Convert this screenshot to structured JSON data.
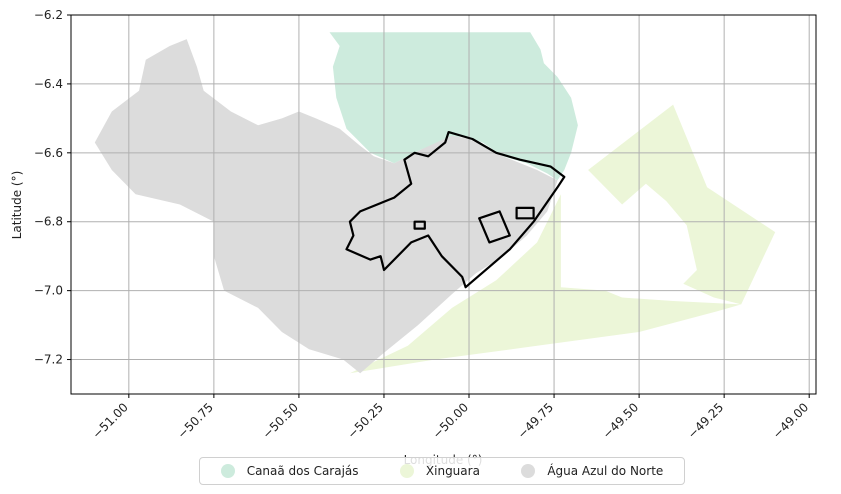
{
  "chart_data": {
    "type": "map",
    "xlabel": "Longitude (°)",
    "ylabel": "Latitude (°)",
    "xlim": [
      -51.17,
      -48.98
    ],
    "ylim": [
      -7.3,
      -6.2
    ],
    "xticks": [
      -51.0,
      -50.75,
      -50.5,
      -50.25,
      -50.0,
      -49.75,
      -49.5,
      -49.25,
      -49.0
    ],
    "xtick_labels": [
      "−51.00",
      "−50.75",
      "−50.50",
      "−50.25",
      "−50.00",
      "−49.75",
      "−49.50",
      "−49.25",
      "−49.00"
    ],
    "yticks": [
      -6.2,
      -6.4,
      -6.6,
      -6.8,
      -7.0,
      -7.2
    ],
    "ytick_labels": [
      "−6.2",
      "−6.4",
      "−6.6",
      "−6.8",
      "−7.0",
      "−7.2"
    ],
    "grid": true,
    "legend_position": "bottom-center",
    "regions": [
      {
        "name": "Canaã dos Carajás",
        "color": "#cdebdd",
        "polygon": [
          [
            -50.41,
            -6.25
          ],
          [
            -50.05,
            -6.25
          ],
          [
            -49.82,
            -6.25
          ],
          [
            -49.79,
            -6.3
          ],
          [
            -49.78,
            -6.34
          ],
          [
            -49.74,
            -6.38
          ],
          [
            -49.7,
            -6.44
          ],
          [
            -49.68,
            -6.52
          ],
          [
            -49.7,
            -6.6
          ],
          [
            -49.72,
            -6.65
          ],
          [
            -49.74,
            -6.68
          ],
          [
            -49.77,
            -6.66
          ],
          [
            -49.83,
            -6.63
          ],
          [
            -49.9,
            -6.61
          ],
          [
            -49.96,
            -6.57
          ],
          [
            -50.02,
            -6.55
          ],
          [
            -50.08,
            -6.57
          ],
          [
            -50.14,
            -6.59
          ],
          [
            -50.22,
            -6.63
          ],
          [
            -50.29,
            -6.6
          ],
          [
            -50.36,
            -6.53
          ],
          [
            -50.39,
            -6.44
          ],
          [
            -50.4,
            -6.35
          ],
          [
            -50.38,
            -6.29
          ]
        ]
      },
      {
        "name": "Xinguara",
        "color": "#ecf6d8",
        "polygon": [
          [
            -50.35,
            -7.24
          ],
          [
            -50.18,
            -7.16
          ],
          [
            -50.05,
            -7.05
          ],
          [
            -49.92,
            -6.97
          ],
          [
            -49.8,
            -6.86
          ],
          [
            -49.73,
            -6.72
          ],
          [
            -49.73,
            -6.99
          ],
          [
            -49.6,
            -7.0
          ],
          [
            -49.55,
            -7.02
          ],
          [
            -49.4,
            -7.03
          ],
          [
            -49.2,
            -7.04
          ],
          [
            -49.1,
            -6.83
          ],
          [
            -49.3,
            -6.7
          ],
          [
            -49.4,
            -6.46
          ],
          [
            -49.65,
            -6.65
          ],
          [
            -49.55,
            -6.75
          ],
          [
            -49.48,
            -6.69
          ],
          [
            -49.42,
            -6.74
          ],
          [
            -49.36,
            -6.81
          ],
          [
            -49.33,
            -6.94
          ],
          [
            -49.37,
            -6.98
          ],
          [
            -49.28,
            -7.02
          ],
          [
            -49.2,
            -7.04
          ],
          [
            -49.27,
            -7.06
          ],
          [
            -49.5,
            -7.12
          ],
          [
            -49.8,
            -7.16
          ],
          [
            -50.1,
            -7.2
          ]
        ]
      },
      {
        "name": "Água Azul do Norte",
        "color": "#dcdcdc",
        "polygon": [
          [
            -50.83,
            -6.27
          ],
          [
            -50.8,
            -6.35
          ],
          [
            -50.78,
            -6.42
          ],
          [
            -50.7,
            -6.48
          ],
          [
            -50.62,
            -6.52
          ],
          [
            -50.55,
            -6.5
          ],
          [
            -50.5,
            -6.48
          ],
          [
            -50.45,
            -6.5
          ],
          [
            -50.38,
            -6.53
          ],
          [
            -50.32,
            -6.58
          ],
          [
            -50.28,
            -6.61
          ],
          [
            -50.22,
            -6.63
          ],
          [
            -50.14,
            -6.59
          ],
          [
            -50.05,
            -6.55
          ],
          [
            -50.0,
            -6.56
          ],
          [
            -49.9,
            -6.61
          ],
          [
            -49.8,
            -6.65
          ],
          [
            -49.74,
            -6.68
          ],
          [
            -49.77,
            -6.77
          ],
          [
            -49.83,
            -6.84
          ],
          [
            -49.9,
            -6.9
          ],
          [
            -49.98,
            -6.95
          ],
          [
            -50.05,
            -7.01
          ],
          [
            -50.15,
            -7.1
          ],
          [
            -50.25,
            -7.18
          ],
          [
            -50.32,
            -7.24
          ],
          [
            -50.37,
            -7.2
          ],
          [
            -50.47,
            -7.17
          ],
          [
            -50.55,
            -7.12
          ],
          [
            -50.62,
            -7.05
          ],
          [
            -50.72,
            -7.0
          ],
          [
            -50.75,
            -6.9
          ],
          [
            -50.75,
            -6.8
          ],
          [
            -50.85,
            -6.75
          ],
          [
            -50.98,
            -6.72
          ],
          [
            -51.05,
            -6.65
          ],
          [
            -51.1,
            -6.57
          ],
          [
            -51.05,
            -6.48
          ],
          [
            -50.97,
            -6.42
          ],
          [
            -50.95,
            -6.33
          ],
          [
            -50.88,
            -6.29
          ]
        ]
      }
    ],
    "outline": {
      "name": "",
      "color": "#000000",
      "paths": [
        [
          [
            -50.01,
            -6.99
          ],
          [
            -49.88,
            -6.88
          ],
          [
            -49.81,
            -6.8
          ],
          [
            -49.74,
            -6.7
          ],
          [
            -49.72,
            -6.67
          ],
          [
            -49.76,
            -6.64
          ],
          [
            -49.85,
            -6.62
          ],
          [
            -49.92,
            -6.6
          ],
          [
            -49.99,
            -6.56
          ],
          [
            -50.06,
            -6.54
          ],
          [
            -50.07,
            -6.57
          ],
          [
            -50.12,
            -6.61
          ],
          [
            -50.16,
            -6.6
          ],
          [
            -50.19,
            -6.62
          ],
          [
            -50.17,
            -6.69
          ],
          [
            -50.22,
            -6.73
          ],
          [
            -50.32,
            -6.77
          ],
          [
            -50.35,
            -6.8
          ],
          [
            -50.34,
            -6.84
          ],
          [
            -50.36,
            -6.88
          ],
          [
            -50.29,
            -6.91
          ],
          [
            -50.26,
            -6.9
          ],
          [
            -50.25,
            -6.94
          ],
          [
            -50.17,
            -6.86
          ],
          [
            -50.12,
            -6.84
          ],
          [
            -50.08,
            -6.9
          ],
          [
            -50.02,
            -6.96
          ]
        ],
        [
          [
            -50.16,
            -6.8
          ],
          [
            -50.13,
            -6.8
          ],
          [
            -50.13,
            -6.82
          ],
          [
            -50.16,
            -6.82
          ]
        ],
        [
          [
            -49.97,
            -6.79
          ],
          [
            -49.91,
            -6.77
          ],
          [
            -49.88,
            -6.84
          ],
          [
            -49.94,
            -6.86
          ]
        ],
        [
          [
            -49.81,
            -6.76
          ],
          [
            -49.86,
            -6.76
          ],
          [
            -49.86,
            -6.79
          ],
          [
            -49.81,
            -6.79
          ]
        ]
      ]
    }
  }
}
